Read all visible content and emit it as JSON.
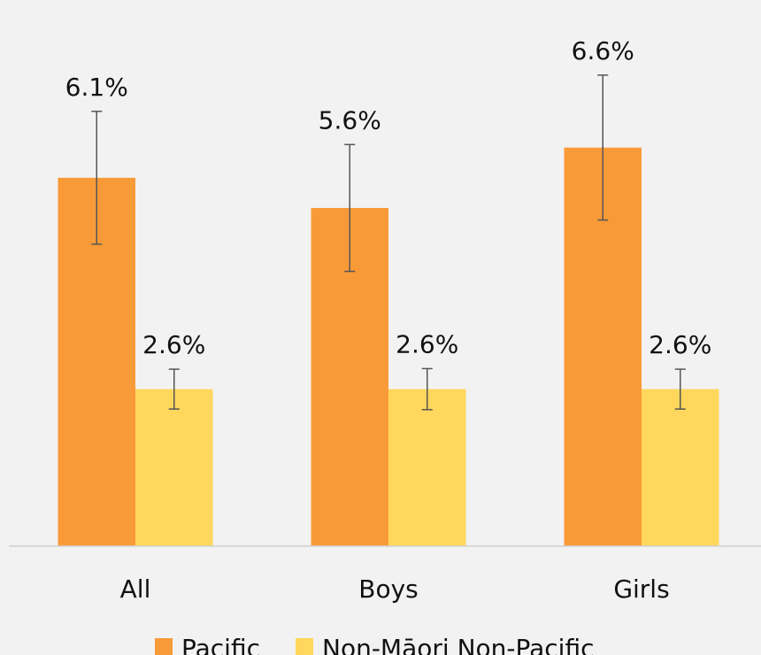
{
  "chart_data": {
    "type": "bar",
    "categories": [
      "All",
      "Boys",
      "Girls"
    ],
    "ylim": [
      0,
      9
    ],
    "legend": "bottom",
    "series": [
      {
        "name": "Pacific",
        "color": "#f99a38",
        "values": [
          6.1,
          5.6,
          6.6
        ],
        "value_labels": [
          "6.1%",
          "5.6%",
          "6.6%"
        ],
        "errors": [
          1.1,
          1.05,
          1.2
        ]
      },
      {
        "name": "Non-Māori Non-Pacific",
        "color": "#ffd75c",
        "values": [
          2.6,
          2.6,
          2.6
        ],
        "value_labels": [
          "2.6%",
          "2.6%",
          "2.6%"
        ],
        "errors": [
          0.33,
          0.34,
          0.33
        ]
      }
    ]
  }
}
